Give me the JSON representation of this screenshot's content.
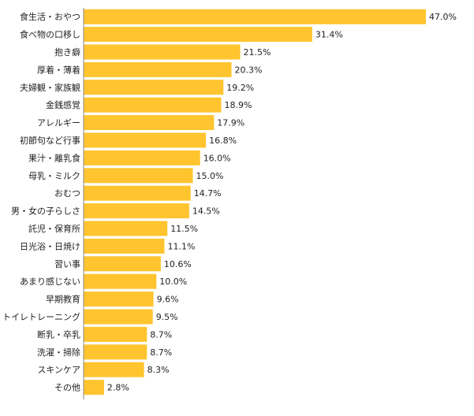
{
  "chart_data": {
    "type": "bar",
    "orientation": "horizontal",
    "title": "",
    "xlabel": "",
    "ylabel": "",
    "xlim": [
      0,
      50
    ],
    "grid": false,
    "legend": "none",
    "bar_color": "#ffc42e",
    "unit": "%",
    "categories": [
      "食生活・おやつ",
      "食べ物の口移し",
      "抱き癖",
      "厚着・薄着",
      "夫婦観・家族観",
      "金銭感覚",
      "アレルギー",
      "初節句など行事",
      "果汁・離乳食",
      "母乳・ミルク",
      "おむつ",
      "男・女の子らしさ",
      "託児・保育所",
      "日光浴・日焼け",
      "習い事",
      "あまり感じない",
      "早期教育",
      "トイレトレーニング",
      "断乳・卒乳",
      "洗濯・掃除",
      "スキンケア",
      "その他"
    ],
    "values": [
      47.0,
      31.4,
      21.5,
      20.3,
      19.2,
      18.9,
      17.9,
      16.8,
      16.0,
      15.0,
      14.7,
      14.5,
      11.5,
      11.1,
      10.6,
      10.0,
      9.6,
      9.5,
      8.7,
      8.7,
      8.3,
      2.8
    ],
    "value_labels": [
      "47.0%",
      "31.4%",
      "21.5%",
      "20.3%",
      "19.2%",
      "18.9%",
      "17.9%",
      "16.8%",
      "16.0%",
      "15.0%",
      "14.7%",
      "14.5%",
      "11.5%",
      "11.1%",
      "10.6%",
      "10.0%",
      "9.6%",
      "9.5%",
      "8.7%",
      "8.7%",
      "8.3%",
      "2.8%"
    ]
  }
}
